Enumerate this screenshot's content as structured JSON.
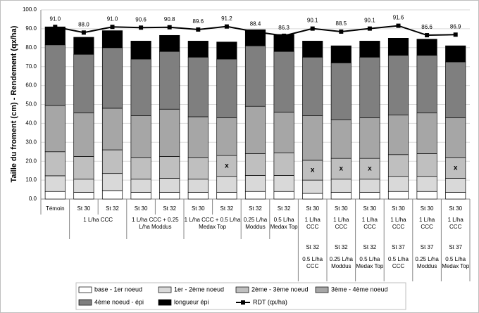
{
  "chart_data": {
    "type": "stacked-bar-line",
    "y_label": "Taille du froment (cm) - Rendement (qx/ha)",
    "ylim": [
      0,
      100
    ],
    "yticks": [
      {
        "value": 0,
        "label": "0.0"
      },
      {
        "value": 10,
        "label": "10.0"
      },
      {
        "value": 20,
        "label": "20.0"
      },
      {
        "value": 30,
        "label": "30.0"
      },
      {
        "value": 40,
        "label": "40.0"
      },
      {
        "value": 50,
        "label": "50.0"
      },
      {
        "value": 60,
        "label": "60.0"
      },
      {
        "value": 70,
        "label": "70.0"
      },
      {
        "value": 80,
        "label": "80.0"
      },
      {
        "value": 90,
        "label": "90.0"
      },
      {
        "value": 100,
        "label": "100.0"
      }
    ],
    "grid": true,
    "categories": [
      "Témoin",
      "St 30",
      "St 32",
      "St 30",
      "St 32",
      "St 30",
      "St 32",
      "St 32",
      "St 32",
      "St 30",
      "St 30",
      "St 30",
      "St 30",
      "St 30",
      "St 30"
    ],
    "category_levels": [
      [
        null,
        "1 L/ha CCC",
        null,
        "1 L/ha CCC + 0.25 L/ha Moddus",
        null,
        "1 L/ha CCC + 0.5 L/ha Medax Top",
        null,
        "0.25 L/ha Moddus",
        "0.5 L/ha Medax Top",
        "1 L/ha CCC",
        "1 L/ha CCC",
        "1 L/ha CCC",
        "1 L/ha CCC",
        "1 L/ha CCC",
        "1 L/ha CCC"
      ],
      [
        null,
        null,
        null,
        null,
        null,
        null,
        null,
        null,
        null,
        "St 32",
        "St 32",
        "St 32",
        "St 37",
        "St 37",
        "St 37"
      ],
      [
        null,
        null,
        null,
        null,
        null,
        null,
        null,
        null,
        null,
        "0.5 L/ha CCC",
        "0.25 L/ha Moddus",
        "0.5 L/ha Medax Top",
        "0.5 L/ha CCC",
        "0.25 L/ha Moddus",
        "0.5 L/ha Medax Top"
      ]
    ],
    "series": [
      {
        "name": "base - 1er noeud",
        "color": "#ffffff",
        "values": [
          4,
          3.5,
          4.5,
          3.5,
          3.5,
          3.5,
          3.5,
          4,
          4,
          3,
          3.5,
          3.5,
          4,
          4,
          3.5
        ]
      },
      {
        "name": "1er - 2ème noeud",
        "color": "#d9d9d9",
        "values": [
          8.3,
          7,
          9,
          7,
          7.5,
          7,
          8.5,
          8.5,
          8.5,
          7,
          7,
          7,
          8,
          8,
          7.5
        ]
      },
      {
        "name": "2ème - 3ème noeud",
        "color": "#bfbfbf",
        "values": [
          12.7,
          12,
          12.5,
          11.5,
          11.5,
          11.5,
          11,
          11.5,
          12,
          10.5,
          11,
          11,
          11.5,
          12,
          11
        ]
      },
      {
        "name": "3ème - 4ème noeud",
        "color": "#a6a6a6",
        "values": [
          24.5,
          23,
          22,
          22,
          25,
          21.5,
          20,
          25,
          21.5,
          23.5,
          20.5,
          21.5,
          21,
          21.5,
          21
        ]
      },
      {
        "name": "4ème noeud - épi",
        "color": "#7f7f7f",
        "values": [
          32,
          31,
          32,
          30,
          30.5,
          31.5,
          31,
          32,
          32,
          31,
          30,
          32,
          31.5,
          30.5,
          29.5
        ]
      },
      {
        "name": "longueur épi",
        "color": "#000000",
        "values": [
          9.5,
          9,
          9,
          9.5,
          8.5,
          8.5,
          9,
          8.5,
          9,
          8.5,
          9,
          8.5,
          9,
          8.5,
          8.5
        ]
      }
    ],
    "line": {
      "name": "RDT (qx/ha)",
      "color": "#000000",
      "values": [
        91.0,
        88.0,
        91.0,
        90.6,
        90.8,
        89.6,
        91.2,
        88.4,
        86.3,
        90.1,
        88.5,
        90.1,
        91.6,
        86.6,
        86.9
      ],
      "value_labels": [
        "91.0",
        "88.0",
        "91.0",
        "90.6",
        "90.8",
        "89.6",
        "91.2",
        "88.4",
        "86.3",
        "90.1",
        "88.5",
        "90.1",
        "91.6",
        "86.6",
        "86.9"
      ]
    },
    "annotations": [
      null,
      null,
      null,
      null,
      null,
      null,
      "x",
      null,
      null,
      "x",
      "x",
      "x",
      null,
      null,
      "x"
    ]
  }
}
